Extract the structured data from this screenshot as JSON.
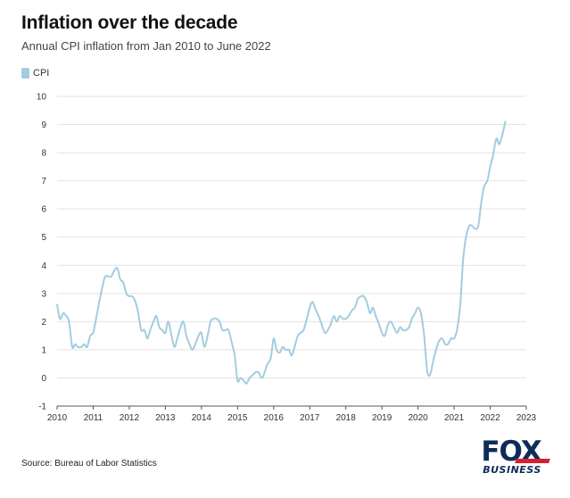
{
  "header": {
    "title": "Inflation over the decade",
    "subtitle": "Annual CPI inflation from Jan 2010 to June 2022"
  },
  "legend": {
    "label": "CPI",
    "color": "#a3cce0"
  },
  "footer": {
    "source": "Source: Bureau of Labor Statistics"
  },
  "logo": {
    "top_text": "FOX",
    "bottom_text": "BUSINESS",
    "primary_color": "#0e2c5a",
    "accent_color": "#d62030"
  },
  "chart_data": {
    "type": "line",
    "title": "Inflation over the decade",
    "subtitle": "Annual CPI inflation from Jan 2010 to June 2022",
    "xlabel": "",
    "ylabel": "",
    "xlim": [
      2010,
      2023
    ],
    "ylim": [
      -1,
      10
    ],
    "x_ticks": [
      2010,
      2011,
      2012,
      2013,
      2014,
      2015,
      2016,
      2017,
      2018,
      2019,
      2020,
      2021,
      2022,
      2023
    ],
    "y_ticks": [
      -1,
      0,
      1,
      2,
      3,
      4,
      5,
      6,
      7,
      8,
      9,
      10
    ],
    "grid": true,
    "legend_position": "top-left",
    "series": [
      {
        "name": "CPI",
        "color": "#a3cce0",
        "points": [
          [
            2010.0,
            2.6
          ],
          [
            2010.08,
            2.1
          ],
          [
            2010.17,
            2.3
          ],
          [
            2010.25,
            2.2
          ],
          [
            2010.33,
            2.0
          ],
          [
            2010.42,
            1.1
          ],
          [
            2010.5,
            1.2
          ],
          [
            2010.58,
            1.1
          ],
          [
            2010.67,
            1.1
          ],
          [
            2010.75,
            1.2
          ],
          [
            2010.83,
            1.1
          ],
          [
            2010.92,
            1.5
          ],
          [
            2011.0,
            1.6
          ],
          [
            2011.08,
            2.1
          ],
          [
            2011.17,
            2.7
          ],
          [
            2011.25,
            3.2
          ],
          [
            2011.33,
            3.6
          ],
          [
            2011.42,
            3.6
          ],
          [
            2011.5,
            3.6
          ],
          [
            2011.58,
            3.8
          ],
          [
            2011.67,
            3.9
          ],
          [
            2011.75,
            3.5
          ],
          [
            2011.83,
            3.4
          ],
          [
            2011.92,
            3.0
          ],
          [
            2012.0,
            2.9
          ],
          [
            2012.08,
            2.9
          ],
          [
            2012.17,
            2.7
          ],
          [
            2012.25,
            2.3
          ],
          [
            2012.33,
            1.7
          ],
          [
            2012.42,
            1.7
          ],
          [
            2012.5,
            1.4
          ],
          [
            2012.58,
            1.7
          ],
          [
            2012.67,
            2.0
          ],
          [
            2012.75,
            2.2
          ],
          [
            2012.83,
            1.8
          ],
          [
            2012.92,
            1.7
          ],
          [
            2013.0,
            1.6
          ],
          [
            2013.08,
            2.0
          ],
          [
            2013.17,
            1.5
          ],
          [
            2013.25,
            1.1
          ],
          [
            2013.33,
            1.4
          ],
          [
            2013.42,
            1.8
          ],
          [
            2013.5,
            2.0
          ],
          [
            2013.58,
            1.5
          ],
          [
            2013.67,
            1.2
          ],
          [
            2013.75,
            1.0
          ],
          [
            2013.83,
            1.2
          ],
          [
            2013.92,
            1.5
          ],
          [
            2014.0,
            1.6
          ],
          [
            2014.08,
            1.1
          ],
          [
            2014.17,
            1.5
          ],
          [
            2014.25,
            2.0
          ],
          [
            2014.33,
            2.1
          ],
          [
            2014.42,
            2.1
          ],
          [
            2014.5,
            2.0
          ],
          [
            2014.58,
            1.7
          ],
          [
            2014.67,
            1.7
          ],
          [
            2014.75,
            1.7
          ],
          [
            2014.83,
            1.3
          ],
          [
            2014.92,
            0.8
          ],
          [
            2015.0,
            -0.1
          ],
          [
            2015.08,
            0.0
          ],
          [
            2015.17,
            -0.1
          ],
          [
            2015.25,
            -0.2
          ],
          [
            2015.33,
            0.0
          ],
          [
            2015.42,
            0.1
          ],
          [
            2015.5,
            0.2
          ],
          [
            2015.58,
            0.2
          ],
          [
            2015.67,
            0.0
          ],
          [
            2015.75,
            0.2
          ],
          [
            2015.83,
            0.5
          ],
          [
            2015.92,
            0.7
          ],
          [
            2016.0,
            1.4
          ],
          [
            2016.08,
            1.0
          ],
          [
            2016.17,
            0.9
          ],
          [
            2016.25,
            1.1
          ],
          [
            2016.33,
            1.0
          ],
          [
            2016.42,
            1.0
          ],
          [
            2016.5,
            0.8
          ],
          [
            2016.58,
            1.1
          ],
          [
            2016.67,
            1.5
          ],
          [
            2016.75,
            1.6
          ],
          [
            2016.83,
            1.7
          ],
          [
            2016.92,
            2.1
          ],
          [
            2017.0,
            2.5
          ],
          [
            2017.08,
            2.7
          ],
          [
            2017.17,
            2.4
          ],
          [
            2017.25,
            2.2
          ],
          [
            2017.33,
            1.9
          ],
          [
            2017.42,
            1.6
          ],
          [
            2017.5,
            1.7
          ],
          [
            2017.58,
            1.9
          ],
          [
            2017.67,
            2.2
          ],
          [
            2017.75,
            2.0
          ],
          [
            2017.83,
            2.2
          ],
          [
            2017.92,
            2.1
          ],
          [
            2018.0,
            2.1
          ],
          [
            2018.08,
            2.2
          ],
          [
            2018.17,
            2.4
          ],
          [
            2018.25,
            2.5
          ],
          [
            2018.33,
            2.8
          ],
          [
            2018.42,
            2.9
          ],
          [
            2018.5,
            2.9
          ],
          [
            2018.58,
            2.7
          ],
          [
            2018.67,
            2.3
          ],
          [
            2018.75,
            2.5
          ],
          [
            2018.83,
            2.2
          ],
          [
            2018.92,
            1.9
          ],
          [
            2019.0,
            1.6
          ],
          [
            2019.08,
            1.5
          ],
          [
            2019.17,
            1.9
          ],
          [
            2019.25,
            2.0
          ],
          [
            2019.33,
            1.8
          ],
          [
            2019.42,
            1.6
          ],
          [
            2019.5,
            1.8
          ],
          [
            2019.58,
            1.7
          ],
          [
            2019.67,
            1.7
          ],
          [
            2019.75,
            1.8
          ],
          [
            2019.83,
            2.1
          ],
          [
            2019.92,
            2.3
          ],
          [
            2020.0,
            2.5
          ],
          [
            2020.08,
            2.3
          ],
          [
            2020.17,
            1.5
          ],
          [
            2020.25,
            0.3
          ],
          [
            2020.33,
            0.1
          ],
          [
            2020.42,
            0.6
          ],
          [
            2020.5,
            1.0
          ],
          [
            2020.58,
            1.3
          ],
          [
            2020.67,
            1.4
          ],
          [
            2020.75,
            1.2
          ],
          [
            2020.83,
            1.2
          ],
          [
            2020.92,
            1.4
          ],
          [
            2021.0,
            1.4
          ],
          [
            2021.08,
            1.7
          ],
          [
            2021.17,
            2.6
          ],
          [
            2021.25,
            4.2
          ],
          [
            2021.33,
            5.0
          ],
          [
            2021.42,
            5.4
          ],
          [
            2021.5,
            5.4
          ],
          [
            2021.58,
            5.3
          ],
          [
            2021.67,
            5.4
          ],
          [
            2021.75,
            6.2
          ],
          [
            2021.83,
            6.8
          ],
          [
            2021.92,
            7.0
          ],
          [
            2022.0,
            7.5
          ],
          [
            2022.08,
            7.9
          ],
          [
            2022.17,
            8.5
          ],
          [
            2022.25,
            8.3
          ],
          [
            2022.33,
            8.6
          ],
          [
            2022.42,
            9.1
          ]
        ]
      }
    ]
  }
}
